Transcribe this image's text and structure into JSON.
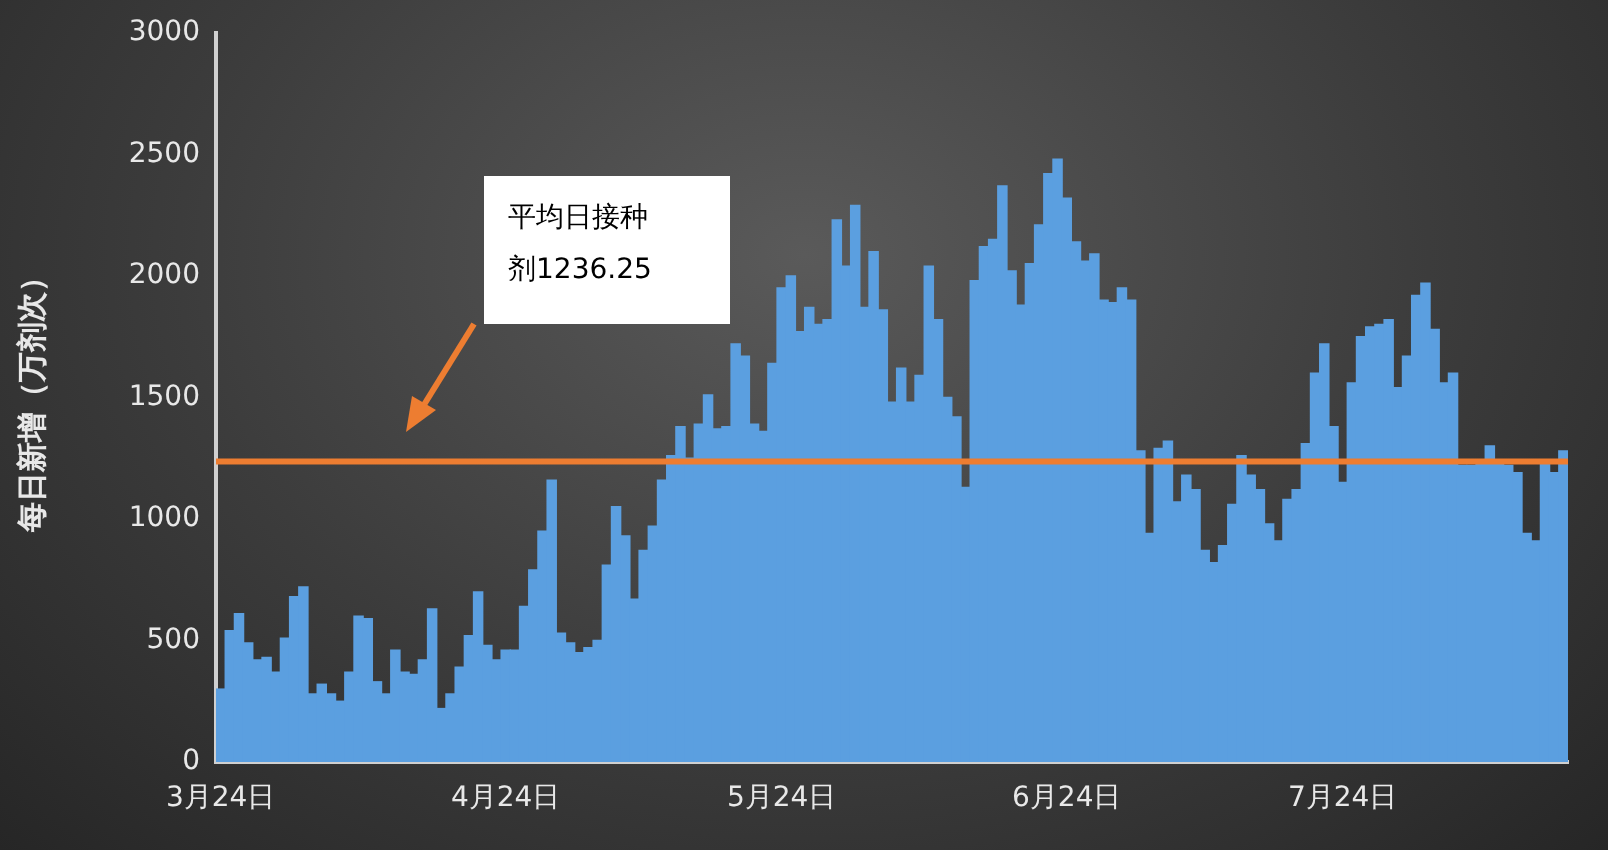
{
  "chart_data": {
    "type": "bar",
    "ylabel": "每日新增（万剂次）",
    "categories": [
      "3月24日",
      null,
      null,
      null,
      null,
      null,
      null,
      null,
      null,
      null,
      null,
      null,
      null,
      null,
      null,
      null,
      null,
      null,
      null,
      null,
      null,
      null,
      null,
      null,
      null,
      null,
      null,
      null,
      null,
      null,
      null,
      "4月24日",
      null,
      null,
      null,
      null,
      null,
      null,
      null,
      null,
      null,
      null,
      null,
      null,
      null,
      null,
      null,
      null,
      null,
      null,
      null,
      null,
      null,
      null,
      null,
      null,
      null,
      null,
      null,
      null,
      null,
      "5月24日",
      null,
      null,
      null,
      null,
      null,
      null,
      null,
      null,
      null,
      null,
      null,
      null,
      null,
      null,
      null,
      null,
      null,
      null,
      null,
      null,
      null,
      null,
      null,
      null,
      null,
      null,
      null,
      null,
      null,
      null,
      "6月24日",
      null,
      null,
      null,
      null,
      null,
      null,
      null,
      null,
      null,
      null,
      null,
      null,
      null,
      null,
      null,
      null,
      null,
      null,
      null,
      null,
      null,
      null,
      null,
      null,
      null,
      null,
      null,
      null,
      null,
      "7月24日",
      null,
      null,
      null,
      null,
      null,
      null,
      null,
      null,
      null,
      null,
      null,
      null,
      null,
      null,
      null,
      null,
      null,
      null,
      null,
      null,
      null,
      null,
      null,
      null
    ],
    "series": [
      {
        "color": "#5b9fe0",
        "values": [
          300,
          540,
          610,
          490,
          420,
          430,
          370,
          510,
          680,
          720,
          280,
          320,
          280,
          250,
          370,
          600,
          590,
          330,
          280,
          460,
          370,
          360,
          420,
          630,
          220,
          280,
          390,
          520,
          700,
          480,
          420,
          460,
          460,
          640,
          790,
          950,
          1160,
          530,
          490,
          450,
          470,
          500,
          810,
          1050,
          930,
          670,
          870,
          970,
          1160,
          1260,
          1380,
          1250,
          1390,
          1510,
          1370,
          1380,
          1720,
          1670,
          1390,
          1360,
          1640,
          1950,
          2000,
          1770,
          1870,
          1800,
          1820,
          2230,
          2040,
          2290,
          1870,
          2100,
          1860,
          1480,
          1620,
          1480,
          1590,
          2040,
          1820,
          1500,
          1420,
          1130,
          1980,
          2120,
          2150,
          2370,
          2020,
          1880,
          2050,
          2210,
          2420,
          2480,
          2320,
          2140,
          2060,
          2090,
          1900,
          1890,
          1950,
          1900,
          1280,
          940,
          1290,
          1320,
          1070,
          1180,
          1120,
          870,
          820,
          890,
          1060,
          1260,
          1180,
          1120,
          980,
          910,
          1080,
          1120,
          1310,
          1600,
          1720,
          1380,
          1150,
          1560,
          1750,
          1790,
          1800,
          1820,
          1540,
          1670,
          1920,
          1970,
          1780,
          1560,
          1600,
          1220,
          1220,
          1230,
          1300,
          1230,
          1220,
          1190,
          940,
          910,
          1230,
          1190,
          1280
        ]
      }
    ],
    "ylim": [
      0,
      3000
    ],
    "yticks": [
      0,
      500,
      1000,
      1500,
      2000,
      2500,
      3000
    ],
    "ref_lines": [
      {
        "axis": "y",
        "value": 1236.25,
        "color": "#ed7d31"
      }
    ],
    "annotations": [
      "平均日接种剂1236.25"
    ],
    "grid": false,
    "legend": false
  }
}
